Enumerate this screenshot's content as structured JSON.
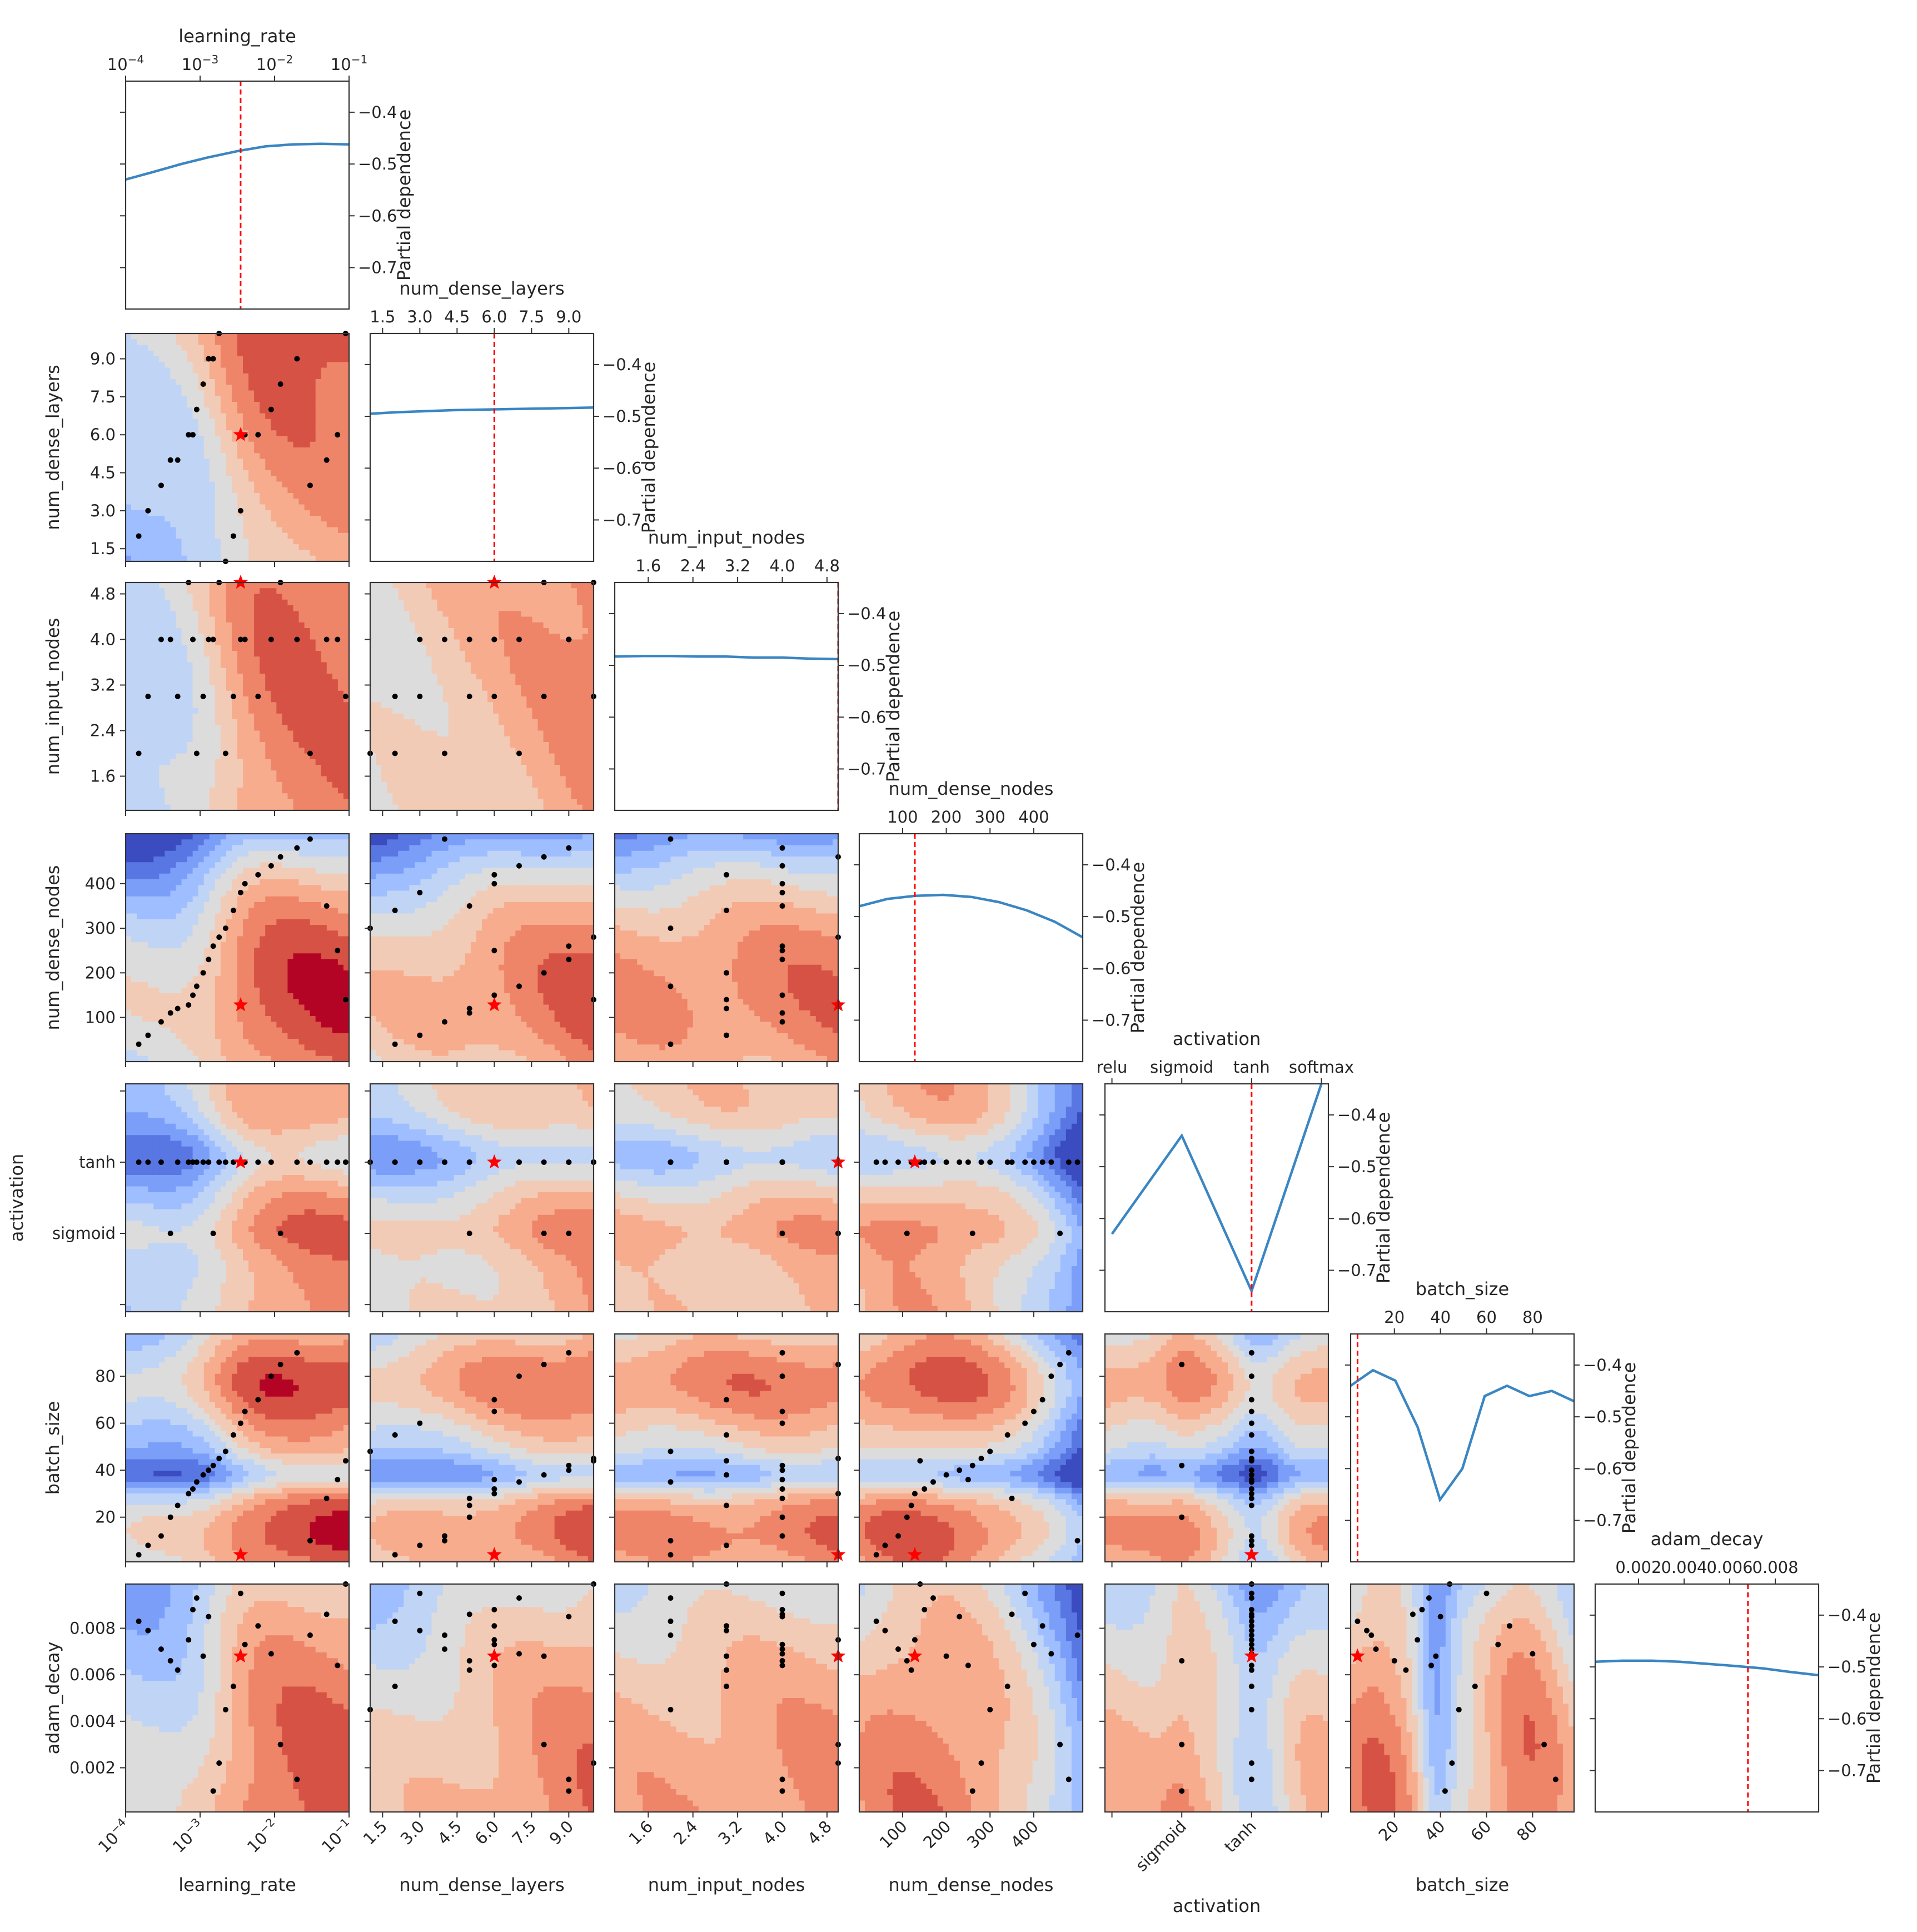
{
  "chart_data": {
    "type": "heatmap",
    "title": "",
    "description_of_kind": "partial dependence objective plot",
    "y_label_diagonal": "Partial dependence",
    "pd_ticks": [
      "-0.4",
      "-0.5",
      "-0.6",
      "-0.7"
    ],
    "pd_range": [
      -0.78,
      -0.34
    ],
    "colors": {
      "line": "#3a86c3",
      "marker": "#ff0000",
      "point": "#000000",
      "best_line": "#ff0000"
    },
    "colormap": [
      "#3b4cc0",
      "#5977e3",
      "#7b9ff9",
      "#9ebeff",
      "#c0d4f5",
      "#dddcdc",
      "#f2cbb7",
      "#f7ac8e",
      "#ee8468",
      "#d65244",
      "#b40426"
    ],
    "dims": [
      {
        "name": "learning_rate",
        "scale": "log",
        "range": [
          0.0001,
          0.1
        ],
        "ticks": [
          "10^-4",
          "10^-3",
          "10^-2",
          "10^-1"
        ],
        "tick_values": [
          0.0001,
          0.001,
          0.01,
          0.1
        ],
        "best": 0.0035,
        "pd": [
          -0.53,
          -0.515,
          -0.5,
          -0.487,
          -0.475,
          -0.466,
          -0.462,
          -0.461,
          -0.462
        ]
      },
      {
        "name": "num_dense_layers",
        "scale": "linear",
        "range": [
          1,
          10
        ],
        "ticks": [
          "1.5",
          "3.0",
          "4.5",
          "6.0",
          "7.5",
          "9.0"
        ],
        "tick_values": [
          1.5,
          3,
          4.5,
          6,
          7.5,
          9
        ],
        "best": 6,
        "pd": [
          -0.495,
          -0.492,
          -0.49,
          -0.488,
          -0.487,
          -0.486,
          -0.485,
          -0.484,
          -0.483
        ]
      },
      {
        "name": "num_input_nodes",
        "scale": "linear",
        "range": [
          1,
          5
        ],
        "ticks": [
          "1.6",
          "2.4",
          "3.2",
          "4.0",
          "4.8"
        ],
        "tick_values": [
          1.6,
          2.4,
          3.2,
          4,
          4.8
        ],
        "best": 5,
        "pd": [
          -0.483,
          -0.482,
          -0.482,
          -0.483,
          -0.483,
          -0.485,
          -0.485,
          -0.487,
          -0.488
        ]
      },
      {
        "name": "num_dense_nodes",
        "scale": "linear",
        "range": [
          1,
          512
        ],
        "ticks": [
          "100",
          "200",
          "300",
          "400"
        ],
        "tick_values": [
          100,
          200,
          300,
          400
        ],
        "best": 128,
        "pd": [
          -0.48,
          -0.466,
          -0.46,
          -0.458,
          -0.462,
          -0.472,
          -0.488,
          -0.51,
          -0.54
        ]
      },
      {
        "name": "activation",
        "scale": "categorical",
        "range": [
          0,
          3
        ],
        "ticks": [
          "relu",
          "sigmoid",
          "tanh",
          "softmax"
        ],
        "tick_values": [
          0,
          1,
          2,
          3
        ],
        "best": 2,
        "pd": [
          -0.63,
          -0.44,
          -0.74,
          -0.34
        ]
      },
      {
        "name": "batch_size",
        "scale": "linear",
        "range": [
          1,
          98
        ],
        "ticks": [
          "20",
          "40",
          "60",
          "80"
        ],
        "tick_values": [
          20,
          40,
          60,
          80
        ],
        "best": 4,
        "pd": [
          -0.44,
          -0.41,
          -0.43,
          -0.52,
          -0.66,
          -0.6,
          -0.46,
          -0.44,
          -0.46,
          -0.45,
          -0.47
        ]
      },
      {
        "name": "adam_decay",
        "scale": "linear",
        "range": [
          0.0001,
          0.0099
        ],
        "ticks": [
          "0.002",
          "0.004",
          "0.006",
          "0.008"
        ],
        "tick_values": [
          0.002,
          0.004,
          0.006,
          0.008
        ],
        "best": 0.0068,
        "pd": [
          -0.49,
          -0.488,
          -0.488,
          -0.49,
          -0.494,
          -0.498,
          -0.503,
          -0.51,
          -0.516
        ]
      }
    ],
    "pd_x": {
      "learning_rate": [
        0.0001,
        0.00024,
        0.00056,
        0.0013,
        0.0032,
        0.0075,
        0.018,
        0.042,
        0.1
      ],
      "num_dense_layers": [
        1,
        2.1,
        3.2,
        4.4,
        5.5,
        6.6,
        7.8,
        8.9,
        10
      ],
      "num_input_nodes": [
        1,
        1.5,
        2,
        2.5,
        3,
        3.5,
        4,
        4.5,
        5
      ],
      "num_dense_nodes": [
        1,
        65,
        129,
        193,
        257,
        320,
        384,
        448,
        512
      ],
      "activation": [
        0,
        1,
        2,
        3
      ],
      "batch_size": [
        1,
        10.7,
        20.4,
        30.1,
        39.8,
        49.5,
        59.2,
        68.9,
        78.6,
        88.3,
        98
      ],
      "adam_decay": [
        0.0001,
        0.0013,
        0.0026,
        0.0038,
        0.005,
        0.0062,
        0.0075,
        0.0087,
        0.0099
      ]
    },
    "samples": {
      "learning_rate": [
        0.00015,
        0.0002,
        0.0003,
        0.0004,
        0.0005,
        0.0007,
        0.0008,
        0.0009,
        0.0011,
        0.0013,
        0.0015,
        0.0018,
        0.0022,
        0.0028,
        0.0035,
        0.004,
        0.006,
        0.009,
        0.012,
        0.02,
        0.03,
        0.05,
        0.07,
        0.09
      ],
      "num_dense_layers": [
        2,
        3,
        4,
        5,
        5,
        6,
        6,
        7,
        8,
        9,
        9,
        10,
        1,
        2,
        3,
        6,
        6,
        7,
        8,
        9,
        4,
        5,
        6,
        10
      ],
      "num_input_nodes": [
        2,
        3,
        4,
        4,
        3,
        5,
        4,
        2,
        3,
        4,
        4,
        5,
        2,
        3,
        4,
        4,
        3,
        4,
        5,
        4,
        2,
        4,
        4,
        3
      ],
      "num_dense_nodes": [
        40,
        60,
        90,
        110,
        120,
        128,
        150,
        170,
        200,
        230,
        260,
        280,
        300,
        340,
        380,
        400,
        420,
        440,
        460,
        480,
        500,
        350,
        250,
        140
      ],
      "activation": [
        2,
        2,
        2,
        1,
        2,
        2,
        2,
        2,
        2,
        2,
        1,
        2,
        2,
        2,
        2,
        2,
        2,
        2,
        1,
        2,
        2,
        2,
        2,
        2
      ],
      "batch_size": [
        4,
        8,
        12,
        20,
        25,
        30,
        32,
        35,
        38,
        40,
        42,
        45,
        48,
        55,
        60,
        65,
        70,
        80,
        85,
        90,
        10,
        28,
        36,
        44
      ],
      "adam_decay": [
        0.0083,
        0.0079,
        0.0071,
        0.0066,
        0.0062,
        0.0075,
        0.0088,
        0.0093,
        0.0068,
        0.0085,
        0.001,
        0.0022,
        0.0045,
        0.0055,
        0.0095,
        0.0073,
        0.0081,
        0.0069,
        0.003,
        0.0015,
        0.0077,
        0.0086,
        0.0064,
        0.0099
      ]
    }
  }
}
